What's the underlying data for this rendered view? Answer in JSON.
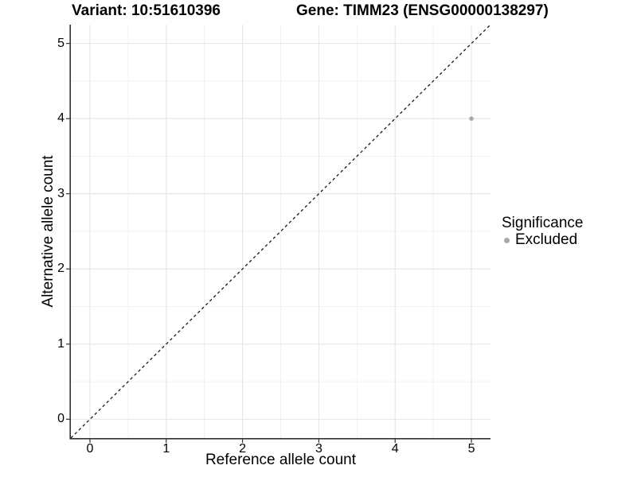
{
  "titles": {
    "variant": "Variant: 10:51610396",
    "gene": "Gene: TIMM23 (ENSG00000138297)"
  },
  "axes": {
    "x": {
      "label": "Reference allele count"
    },
    "y": {
      "label": "Alternative allele count"
    }
  },
  "legend": {
    "title": "Significance",
    "items": [
      {
        "label": "Excluded",
        "color": "#A9A9A9"
      }
    ]
  },
  "chart_data": {
    "type": "scatter",
    "title_left": "Variant: 10:51610396",
    "title_right": "Gene: TIMM23 (ENSG00000138297)",
    "xlabel": "Reference allele count",
    "ylabel": "Alternative allele count",
    "xlim": [
      -0.25,
      5.25
    ],
    "ylim": [
      -0.25,
      5.25
    ],
    "x_ticks": [
      0,
      1,
      2,
      3,
      4,
      5
    ],
    "y_ticks": [
      0,
      1,
      2,
      3,
      4,
      5
    ],
    "x_minor_ticks": [
      0.5,
      1.5,
      2.5,
      3.5,
      4.5
    ],
    "y_minor_ticks": [
      0.5,
      1.5,
      2.5,
      3.5,
      4.5
    ],
    "grid": "major+minor",
    "legend_position": "right-center",
    "series": [
      {
        "name": "Excluded",
        "color": "#A9A9A9",
        "point_radius": 2.8,
        "points": [
          {
            "x": 5,
            "y": 4
          }
        ]
      }
    ],
    "reference_line": {
      "type": "identity y=x",
      "style": "dashed",
      "color": "#1A1A1A"
    }
  },
  "colors": {
    "background": "#FFFFFF",
    "axis_line": "#333333",
    "grid_major": "#E5E5E5",
    "grid_minor": "#F2F2F2",
    "excluded_point": "#A9A9A9",
    "text": "#000000"
  }
}
